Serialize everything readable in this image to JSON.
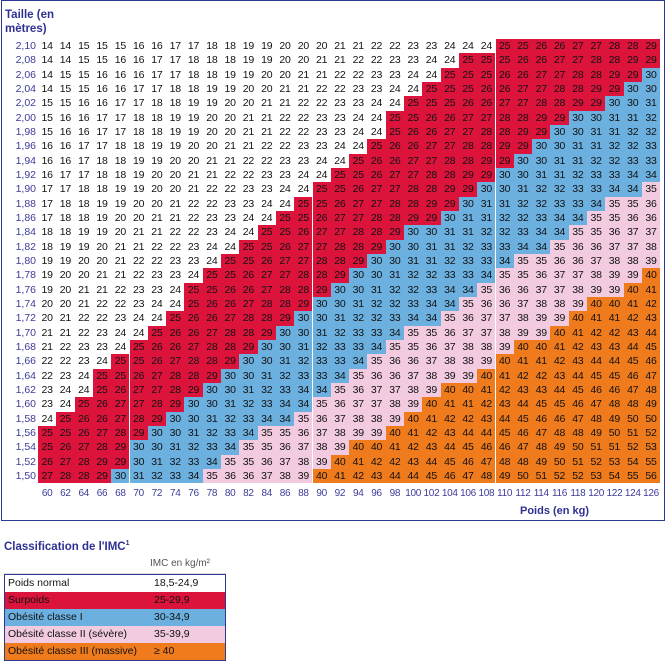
{
  "chart_data": {
    "type": "table",
    "title": "",
    "ylabel": "Taille (en mètres)",
    "xlabel": "Poids (en kg)",
    "heights": [
      "2,10",
      "2,08",
      "2,06",
      "2,04",
      "2,02",
      "2,00",
      "1,98",
      "1,96",
      "1,94",
      "1,92",
      "1,90",
      "1,88",
      "1,86",
      "1,84",
      "1,82",
      "1,80",
      "1,78",
      "1,76",
      "1,74",
      "1,72",
      "1,70",
      "1,68",
      "1,66",
      "1,64",
      "1,62",
      "1,60",
      "1,58",
      "1,56",
      "1,54",
      "1,52",
      "1,50"
    ],
    "weights": [
      60,
      62,
      64,
      66,
      68,
      70,
      72,
      74,
      76,
      78,
      80,
      82,
      84,
      86,
      88,
      90,
      92,
      94,
      96,
      98,
      100,
      102,
      104,
      106,
      108,
      110,
      112,
      114,
      116,
      118,
      120,
      122,
      124,
      126
    ],
    "cell_value": "IMC = poids / taille², arrondi",
    "colors": {
      "normal": "#ffffff",
      "surpoids": "#dc143c",
      "obesite1": "#6cb0e0",
      "obesite2": "#f3cbe0",
      "obesite3": "#ef7b1d"
    }
  },
  "legend": {
    "title": "Classification de l'IMC",
    "footnote": "1",
    "unit_header": "IMC en kg/m²",
    "rows": [
      {
        "name": "Poids normal",
        "range": "18,5-24,9",
        "color": "#ffffff",
        "min": 0
      },
      {
        "name": "Surpoids",
        "range": "25-29,9",
        "color": "#dc143c",
        "min": 25
      },
      {
        "name": "Obésité classe I",
        "range": "30-34,9",
        "color": "#6cb0e0",
        "min": 30
      },
      {
        "name": "Obésité classe II (sévère)",
        "range": "35-39,9",
        "color": "#f3cbe0",
        "min": 35
      },
      {
        "name": "Obésité classe III (massive)",
        "range": "≥ 40",
        "color": "#ef7b1d",
        "min": 40
      }
    ]
  }
}
